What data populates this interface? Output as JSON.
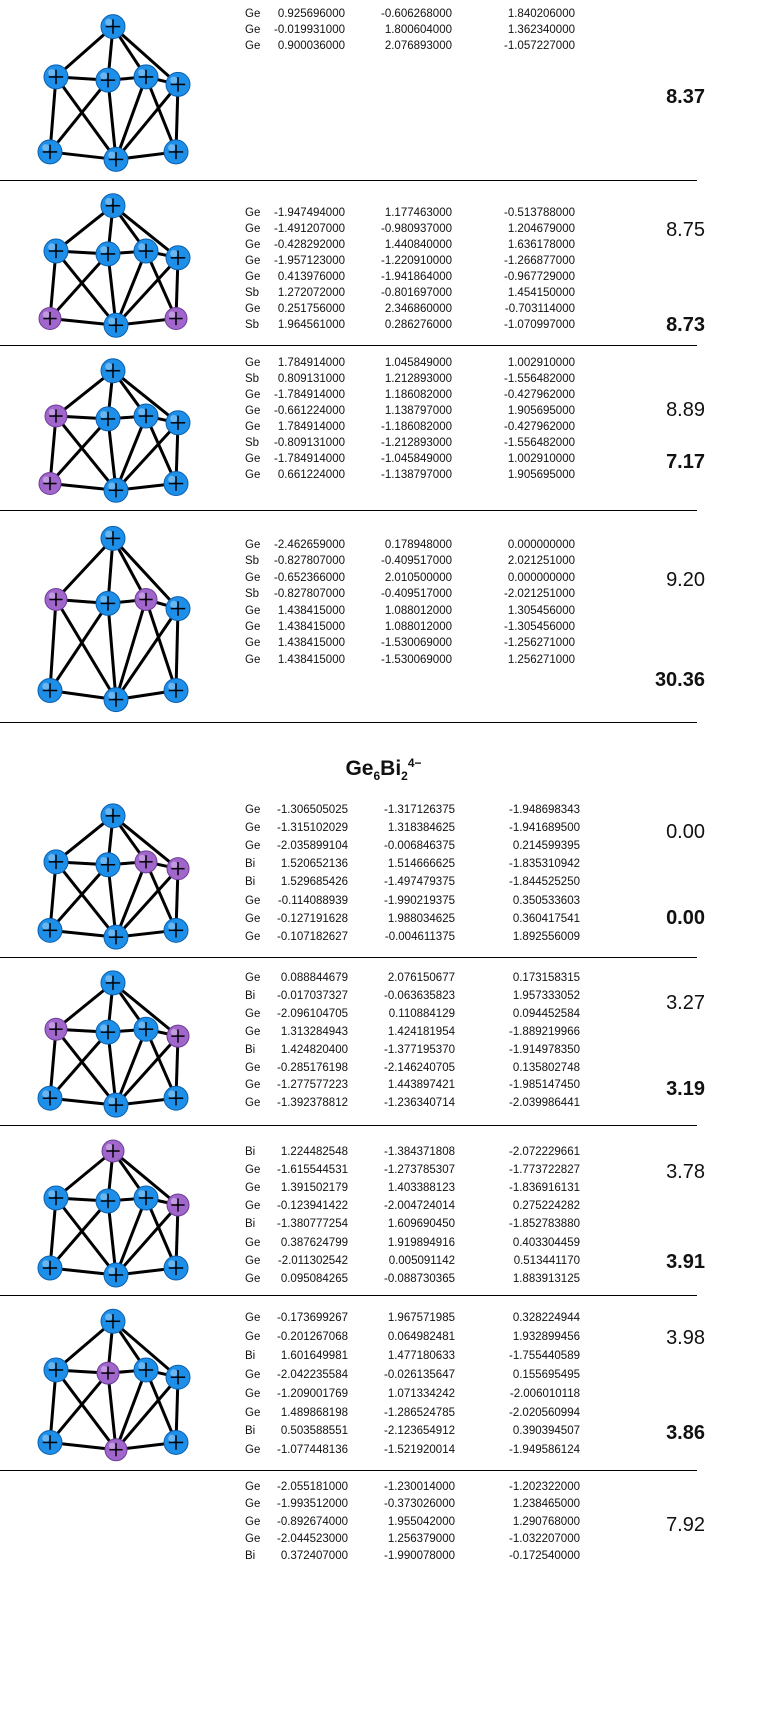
{
  "sections": [
    {
      "rows": [
        {
          "atoms": [
            [
              "Ge",
              "0.925696000",
              "-0.606268000",
              "1.840206000"
            ],
            [
              "Ge",
              "-0.019931000",
              "1.800604000",
              "1.362340000"
            ],
            [
              "Ge",
              "0.900036000",
              "2.076893000",
              "-1.057227000"
            ]
          ],
          "energy_lower": "8.37"
        },
        {
          "atoms": [
            [
              "Ge",
              "-1.947494000",
              "1.177463000",
              "-0.513788000"
            ],
            [
              "Ge",
              "-1.491207000",
              "-0.980937000",
              "1.204679000"
            ],
            [
              "Ge",
              "-0.428292000",
              "1.440840000",
              "1.636178000"
            ],
            [
              "Ge",
              "-1.957123000",
              "-1.220910000",
              "-1.266877000"
            ],
            [
              "Ge",
              "0.413976000",
              "-1.941864000",
              "-0.967729000"
            ],
            [
              "Sb",
              "1.272072000",
              "-0.801697000",
              "1.454150000"
            ],
            [
              "Ge",
              "0.251756000",
              "2.346860000",
              "-0.703114000"
            ],
            [
              "Sb",
              "1.964561000",
              "0.286276000",
              "-1.070997000"
            ]
          ],
          "energy_upper": "8.75",
          "energy_lower": "8.73"
        },
        {
          "atoms": [
            [
              "Ge",
              "1.784914000",
              "1.045849000",
              "1.002910000"
            ],
            [
              "Sb",
              "0.809131000",
              "1.212893000",
              "-1.556482000"
            ],
            [
              "Ge",
              "-1.784914000",
              "1.186082000",
              "-0.427962000"
            ],
            [
              "Ge",
              "-0.661224000",
              "1.138797000",
              "1.905695000"
            ],
            [
              "Ge",
              "1.784914000",
              "-1.186082000",
              "-0.427962000"
            ],
            [
              "Sb",
              "-0.809131000",
              "-1.212893000",
              "-1.556482000"
            ],
            [
              "Ge",
              "-1.784914000",
              "-1.045849000",
              "1.002910000"
            ],
            [
              "Ge",
              "0.661224000",
              "-1.138797000",
              "1.905695000"
            ]
          ],
          "energy_upper": "8.89",
          "energy_lower": "7.17"
        },
        {
          "atoms": [
            [
              "Ge",
              "-2.462659000",
              "0.178948000",
              "0.000000000"
            ],
            [
              "Sb",
              "-0.827807000",
              "-0.409517000",
              "2.021251000"
            ],
            [
              "Ge",
              "-0.652366000",
              "2.010500000",
              "0.000000000"
            ],
            [
              "Sb",
              "-0.827807000",
              "-0.409517000",
              "-2.021251000"
            ],
            [
              "Ge",
              "1.438415000",
              "1.088012000",
              "1.305456000"
            ],
            [
              "Ge",
              "1.438415000",
              "1.088012000",
              "-1.305456000"
            ],
            [
              "Ge",
              "1.438415000",
              "-1.530069000",
              "-1.256271000"
            ],
            [
              "Ge",
              "1.438415000",
              "-1.530069000",
              "1.256271000"
            ]
          ],
          "energy_upper": "9.20",
          "energy_lower": "30.36"
        }
      ]
    },
    {
      "formula": [
        "Ge",
        "6",
        "Bi",
        "2",
        "4−"
      ],
      "rows": [
        {
          "atoms": [
            [
              "Ge",
              "-1.306505025",
              "-1.317126375",
              "-1.948698343"
            ],
            [
              "Ge",
              "-1.315102029",
              "1.318384625",
              "-1.941689500"
            ],
            [
              "Ge",
              "-2.035899104",
              "-0.006846375",
              "0.214599395"
            ],
            [
              "Bi",
              "1.520652136",
              "1.514666625",
              "-1.835310942"
            ],
            [
              "Bi",
              "1.529685426",
              "-1.497479375",
              "-1.844525250"
            ],
            [
              "Ge",
              "-0.114088939",
              "-1.990219375",
              "0.350533603"
            ],
            [
              "Ge",
              "-0.127191628",
              "1.988034625",
              "0.360417541"
            ],
            [
              "Ge",
              "-0.107182627",
              "-0.004611375",
              "1.892556009"
            ]
          ],
          "energy_upper": "0.00",
          "energy_lower": "0.00"
        },
        {
          "atoms": [
            [
              "Ge",
              "0.088844679",
              "2.076150677",
              "0.173158315"
            ],
            [
              "Bi",
              "-0.017037327",
              "-0.063635823",
              "1.957333052"
            ],
            [
              "Ge",
              "-2.096104705",
              "0.110884129",
              "0.094452584"
            ],
            [
              "Ge",
              "1.313284943",
              "1.424181954",
              "-1.889219966"
            ],
            [
              "Bi",
              "1.424820400",
              "-1.377195370",
              "-1.914978350"
            ],
            [
              "Ge",
              "-0.285176198",
              "-2.146240705",
              "0.135802748"
            ],
            [
              "Ge",
              "-1.277577223",
              "1.443897421",
              "-1.985147450"
            ],
            [
              "Ge",
              "-1.392378812",
              "-1.236340714",
              "-2.039986441"
            ]
          ],
          "energy_upper": "3.27",
          "energy_lower": "3.19"
        },
        {
          "atoms": [
            [
              "Bi",
              "1.224482548",
              "-1.384371808",
              "-2.072229661"
            ],
            [
              "Ge",
              "-1.615544531",
              "-1.273785307",
              "-1.773722827"
            ],
            [
              "Ge",
              "1.391502179",
              "1.403388123",
              "-1.836916131"
            ],
            [
              "Ge",
              "-0.123941422",
              "-2.004724014",
              "0.275224282"
            ],
            [
              "Bi",
              "-1.380777254",
              "1.609690450",
              "-1.852783880"
            ],
            [
              "Ge",
              "0.387624799",
              "1.919894916",
              "0.403304459"
            ],
            [
              "Ge",
              "-2.011302542",
              "0.005091142",
              "0.513441170"
            ],
            [
              "Ge",
              "0.095084265",
              "-0.088730365",
              "1.883913125"
            ]
          ],
          "energy_upper": "3.78",
          "energy_lower": "3.91"
        },
        {
          "atoms": [
            [
              "Ge",
              "-0.173699267",
              "1.967571985",
              "0.328224944"
            ],
            [
              "Ge",
              "-0.201267068",
              "0.064982481",
              "1.932899456"
            ],
            [
              "Bi",
              "1.601649981",
              "1.477180633",
              "-1.755440589"
            ],
            [
              "Ge",
              "-2.042235584",
              "-0.026135647",
              "0.155695495"
            ],
            [
              "Ge",
              "-1.209001769",
              "1.071334242",
              "-2.006010118"
            ],
            [
              "Ge",
              "1.489868198",
              "-1.286524785",
              "-2.020560994"
            ],
            [
              "Bi",
              "0.503588551",
              "-2.123654912",
              "0.390394507"
            ],
            [
              "Ge",
              "-1.077448136",
              "-1.521920014",
              "-1.949586124"
            ]
          ],
          "energy_upper": "3.98",
          "energy_lower": "3.86"
        },
        {
          "atoms": [
            [
              "Ge",
              "-2.055181000",
              "-1.230014000",
              "-1.202322000"
            ],
            [
              "Ge",
              "-1.993512000",
              "-0.373026000",
              "1.238465000"
            ],
            [
              "Ge",
              "-0.892674000",
              "1.955042000",
              "1.290768000"
            ],
            [
              "Ge",
              "-2.044523000",
              "1.256379000",
              "-1.032207000"
            ],
            [
              "Bi",
              "0.372407000",
              "-1.990078000",
              "-0.172540000"
            ]
          ],
          "energy_upper": "7.92"
        }
      ]
    }
  ]
}
